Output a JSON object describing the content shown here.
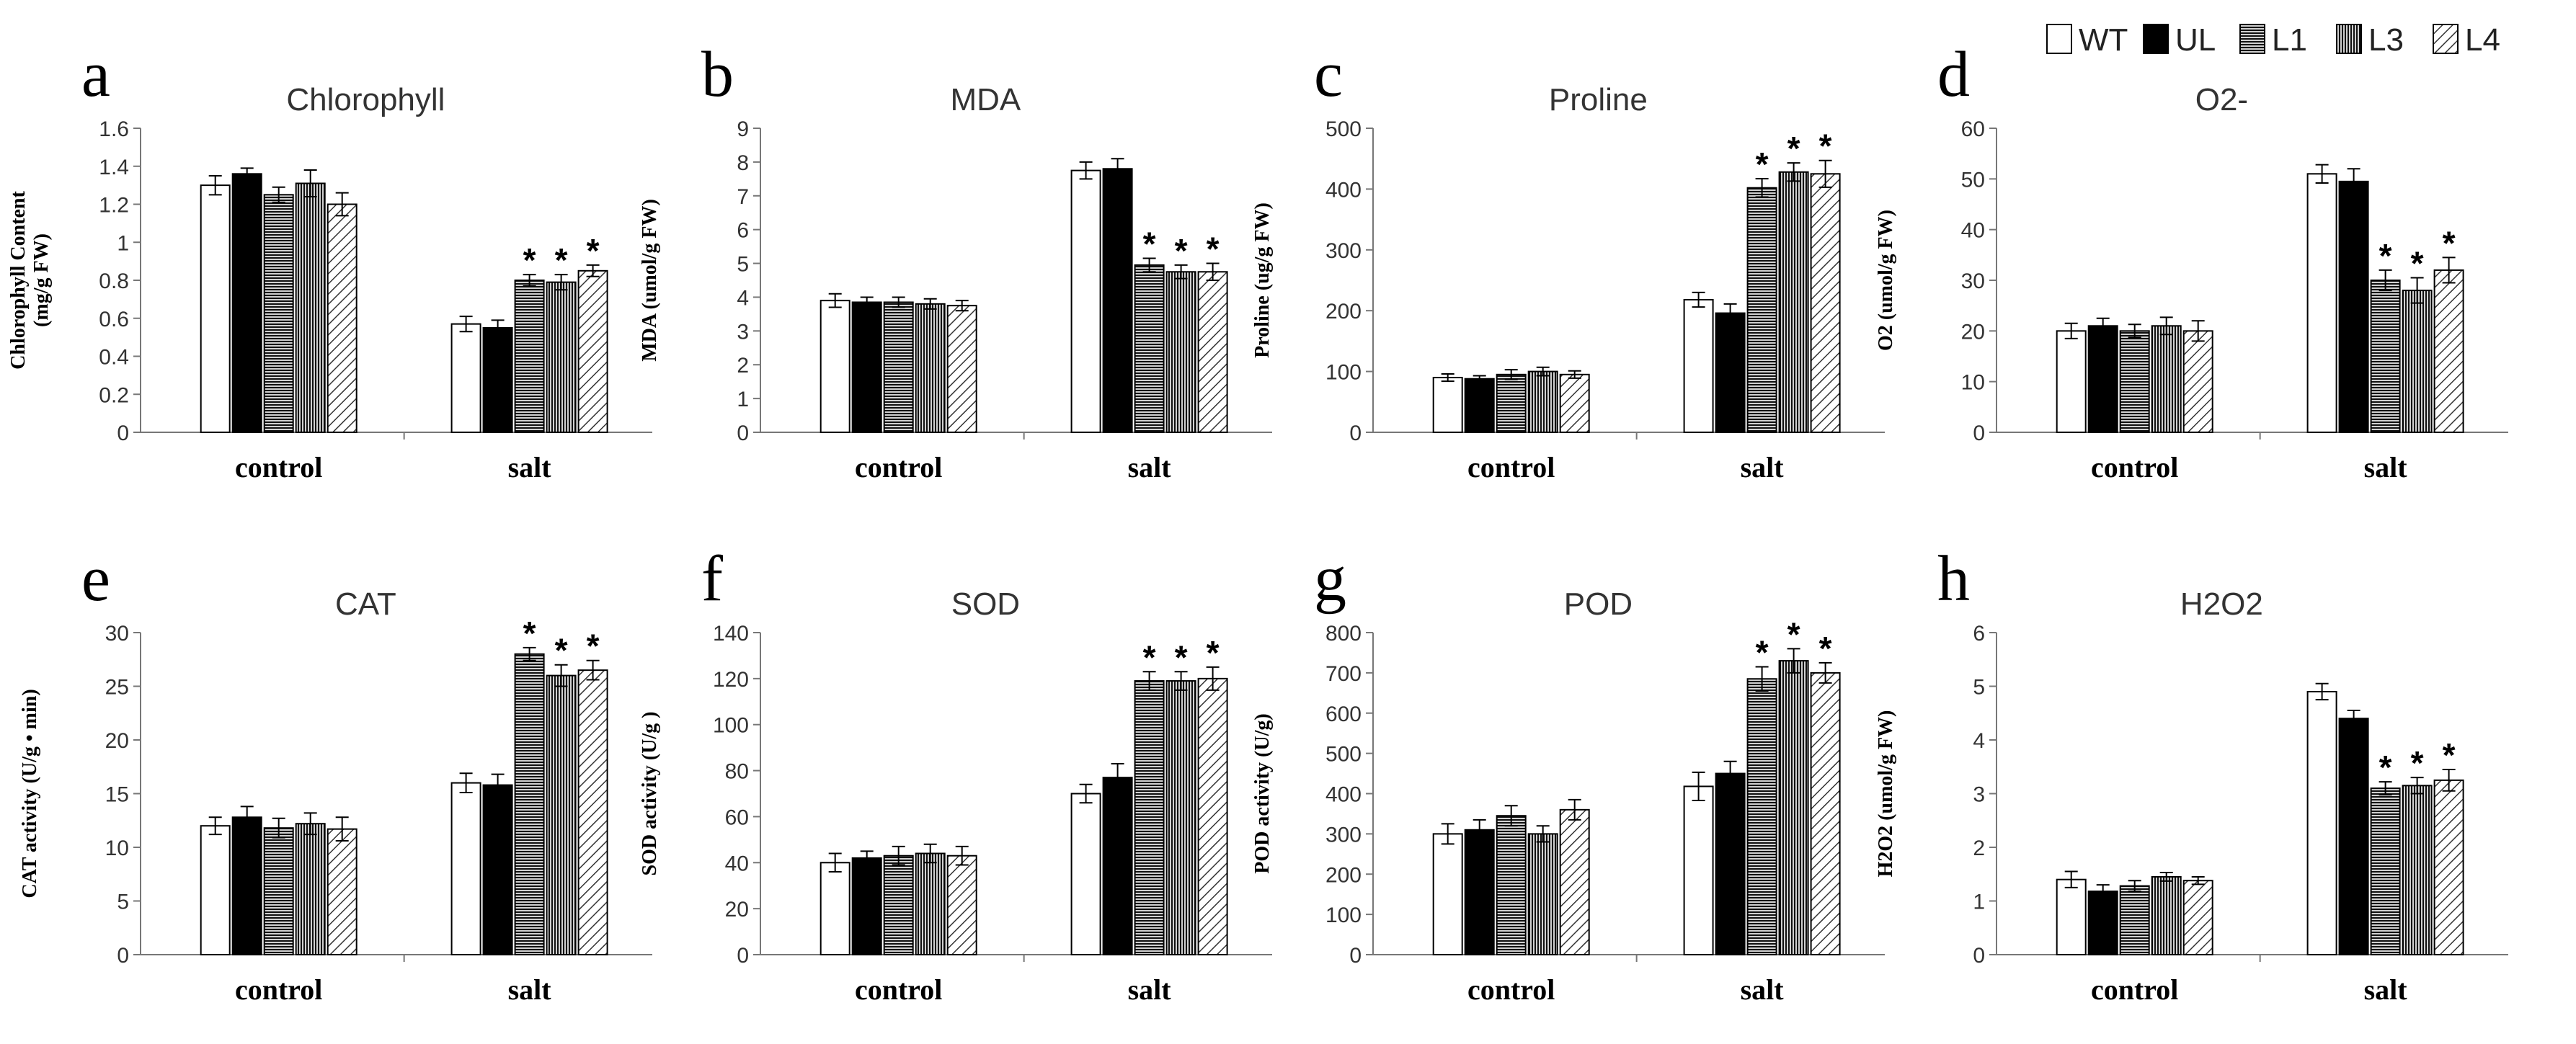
{
  "legend": {
    "position": "top-right",
    "items": [
      {
        "name": "WT",
        "pattern": "white"
      },
      {
        "name": "UL",
        "pattern": "black"
      },
      {
        "name": "L1",
        "pattern": "hlines"
      },
      {
        "name": "L3",
        "pattern": "vlines"
      },
      {
        "name": "L4",
        "pattern": "diag"
      }
    ]
  },
  "colors": {
    "axis": "#777777",
    "bar_stroke": "#000000",
    "text": "#222222"
  },
  "chart_data": [
    {
      "panel": "a",
      "type": "bar",
      "title": "Chlorophyll",
      "ylabel_lines": [
        "Chlorophyll Content",
        "(mg/g FW)"
      ],
      "categories": [
        "control",
        "salt"
      ],
      "ylim": [
        0,
        1.6
      ],
      "yticks": [
        "0",
        "0.2",
        "0.4",
        "0.6",
        "0.8",
        "1",
        "1.2",
        "1.4",
        "1.6"
      ],
      "series": [
        {
          "name": "WT",
          "values": [
            1.3,
            0.57
          ],
          "errors": [
            0.05,
            0.04
          ]
        },
        {
          "name": "UL",
          "values": [
            1.36,
            0.55
          ],
          "errors": [
            0.03,
            0.04
          ]
        },
        {
          "name": "L1",
          "values": [
            1.25,
            0.8
          ],
          "errors": [
            0.04,
            0.03
          ]
        },
        {
          "name": "L3",
          "values": [
            1.31,
            0.79
          ],
          "errors": [
            0.07,
            0.04
          ]
        },
        {
          "name": "L4",
          "values": [
            1.2,
            0.85
          ],
          "errors": [
            0.06,
            0.03
          ]
        }
      ],
      "significance": [
        [
          "",
          ""
        ],
        [
          "",
          ""
        ],
        [
          "",
          "*"
        ],
        [
          "",
          "*"
        ],
        [
          "",
          "*"
        ]
      ]
    },
    {
      "panel": "b",
      "type": "bar",
      "title": "MDA",
      "ylabel_lines": [
        "MDA (umol/g FW)"
      ],
      "categories": [
        "control",
        "salt"
      ],
      "ylim": [
        0,
        9
      ],
      "yticks": [
        "0",
        "1",
        "2",
        "3",
        "4",
        "5",
        "6",
        "7",
        "8",
        "9"
      ],
      "series": [
        {
          "name": "WT",
          "values": [
            3.9,
            7.75
          ],
          "errors": [
            0.2,
            0.25
          ]
        },
        {
          "name": "UL",
          "values": [
            3.85,
            7.8
          ],
          "errors": [
            0.15,
            0.3
          ]
        },
        {
          "name": "L1",
          "values": [
            3.85,
            4.95
          ],
          "errors": [
            0.15,
            0.2
          ]
        },
        {
          "name": "L3",
          "values": [
            3.8,
            4.75
          ],
          "errors": [
            0.15,
            0.2
          ]
        },
        {
          "name": "L4",
          "values": [
            3.75,
            4.75
          ],
          "errors": [
            0.15,
            0.25
          ]
        }
      ],
      "significance": [
        [
          "",
          ""
        ],
        [
          "",
          ""
        ],
        [
          "",
          "*"
        ],
        [
          "",
          "*"
        ],
        [
          "",
          "*"
        ]
      ]
    },
    {
      "panel": "c",
      "type": "bar",
      "title": "Proline",
      "ylabel_lines": [
        "Proline (ug/g FW)"
      ],
      "categories": [
        "control",
        "salt"
      ],
      "ylim": [
        0,
        500
      ],
      "yticks": [
        "0",
        "100",
        "200",
        "300",
        "400",
        "500"
      ],
      "series": [
        {
          "name": "WT",
          "values": [
            90,
            218
          ],
          "errors": [
            6,
            12
          ]
        },
        {
          "name": "UL",
          "values": [
            88,
            196
          ],
          "errors": [
            5,
            15
          ]
        },
        {
          "name": "L1",
          "values": [
            95,
            402
          ],
          "errors": [
            8,
            15
          ]
        },
        {
          "name": "L3",
          "values": [
            100,
            428
          ],
          "errors": [
            7,
            15
          ]
        },
        {
          "name": "L4",
          "values": [
            95,
            425
          ],
          "errors": [
            6,
            22
          ]
        }
      ],
      "significance": [
        [
          "",
          ""
        ],
        [
          "",
          ""
        ],
        [
          "",
          "*"
        ],
        [
          "",
          "*"
        ],
        [
          "",
          "*"
        ]
      ]
    },
    {
      "panel": "d",
      "type": "bar",
      "title": "O2-",
      "ylabel_lines": [
        "O2 (umol/g FW)"
      ],
      "categories": [
        "control",
        "salt"
      ],
      "ylim": [
        0,
        60
      ],
      "yticks": [
        "0",
        "10",
        "20",
        "30",
        "40",
        "50",
        "60"
      ],
      "series": [
        {
          "name": "WT",
          "values": [
            20,
            51
          ],
          "errors": [
            1.5,
            1.8
          ]
        },
        {
          "name": "UL",
          "values": [
            21,
            49.5
          ],
          "errors": [
            1.5,
            2.5
          ]
        },
        {
          "name": "L1",
          "values": [
            20,
            30
          ],
          "errors": [
            1.3,
            2
          ]
        },
        {
          "name": "L3",
          "values": [
            21,
            28
          ],
          "errors": [
            1.7,
            2.5
          ]
        },
        {
          "name": "L4",
          "values": [
            20,
            32
          ],
          "errors": [
            2,
            2.5
          ]
        }
      ],
      "significance": [
        [
          "",
          ""
        ],
        [
          "",
          ""
        ],
        [
          "",
          "*"
        ],
        [
          "",
          "*"
        ],
        [
          "",
          "*"
        ]
      ]
    },
    {
      "panel": "e",
      "type": "bar",
      "title": "CAT",
      "ylabel_lines": [
        "CAT activity (U/g • min)"
      ],
      "categories": [
        "control",
        "salt"
      ],
      "ylim": [
        0,
        30
      ],
      "yticks": [
        "0",
        "5",
        "10",
        "15",
        "20",
        "25",
        "30"
      ],
      "series": [
        {
          "name": "WT",
          "values": [
            12,
            16
          ],
          "errors": [
            0.8,
            0.9
          ]
        },
        {
          "name": "UL",
          "values": [
            12.8,
            15.8
          ],
          "errors": [
            1,
            1
          ]
        },
        {
          "name": "L1",
          "values": [
            11.8,
            28
          ],
          "errors": [
            0.9,
            0.6
          ]
        },
        {
          "name": "L3",
          "values": [
            12.2,
            26
          ],
          "errors": [
            1,
            1
          ]
        },
        {
          "name": "L4",
          "values": [
            11.7,
            26.5
          ],
          "errors": [
            1.1,
            0.9
          ]
        }
      ],
      "significance": [
        [
          "",
          ""
        ],
        [
          "",
          ""
        ],
        [
          "",
          "*"
        ],
        [
          "",
          "*"
        ],
        [
          "",
          "*"
        ]
      ]
    },
    {
      "panel": "f",
      "type": "bar",
      "title": "SOD",
      "ylabel_lines": [
        "SOD activity (U/g )"
      ],
      "categories": [
        "control",
        "salt"
      ],
      "ylim": [
        0,
        140
      ],
      "yticks": [
        "0",
        "20",
        "40",
        "60",
        "80",
        "100",
        "120",
        "140"
      ],
      "series": [
        {
          "name": "WT",
          "values": [
            40,
            70
          ],
          "errors": [
            4,
            4
          ]
        },
        {
          "name": "UL",
          "values": [
            42,
            77
          ],
          "errors": [
            3,
            6
          ]
        },
        {
          "name": "L1",
          "values": [
            43,
            119
          ],
          "errors": [
            4,
            4
          ]
        },
        {
          "name": "L3",
          "values": [
            44,
            119
          ],
          "errors": [
            4,
            4
          ]
        },
        {
          "name": "L4",
          "values": [
            43,
            120
          ],
          "errors": [
            4,
            5
          ]
        }
      ],
      "significance": [
        [
          "",
          ""
        ],
        [
          "",
          ""
        ],
        [
          "",
          "*"
        ],
        [
          "",
          "*"
        ],
        [
          "",
          "*"
        ]
      ]
    },
    {
      "panel": "g",
      "type": "bar",
      "title": "POD",
      "ylabel_lines": [
        "POD activity (U/g)"
      ],
      "categories": [
        "control",
        "salt"
      ],
      "ylim": [
        0,
        800
      ],
      "yticks": [
        "0",
        "100",
        "200",
        "300",
        "400",
        "500",
        "600",
        "700",
        "800"
      ],
      "series": [
        {
          "name": "WT",
          "values": [
            300,
            418
          ],
          "errors": [
            25,
            35
          ]
        },
        {
          "name": "UL",
          "values": [
            310,
            450
          ],
          "errors": [
            25,
            30
          ]
        },
        {
          "name": "L1",
          "values": [
            345,
            685
          ],
          "errors": [
            25,
            30
          ]
        },
        {
          "name": "L3",
          "values": [
            300,
            730
          ],
          "errors": [
            20,
            30
          ]
        },
        {
          "name": "L4",
          "values": [
            360,
            700
          ],
          "errors": [
            25,
            25
          ]
        }
      ],
      "significance": [
        [
          "",
          ""
        ],
        [
          "",
          ""
        ],
        [
          "",
          "*"
        ],
        [
          "",
          "*"
        ],
        [
          "",
          "*"
        ]
      ]
    },
    {
      "panel": "h",
      "type": "bar",
      "title": "H2O2",
      "ylabel_lines": [
        "H2O2 (umol/g FW)"
      ],
      "categories": [
        "control",
        "salt"
      ],
      "ylim": [
        0,
        6
      ],
      "yticks": [
        "0",
        "1",
        "2",
        "3",
        "4",
        "5",
        "6"
      ],
      "series": [
        {
          "name": "WT",
          "values": [
            1.4,
            4.9
          ],
          "errors": [
            0.15,
            0.15
          ]
        },
        {
          "name": "UL",
          "values": [
            1.18,
            4.4
          ],
          "errors": [
            0.12,
            0.15
          ]
        },
        {
          "name": "L1",
          "values": [
            1.28,
            3.1
          ],
          "errors": [
            0.1,
            0.12
          ]
        },
        {
          "name": "L3",
          "values": [
            1.45,
            3.15
          ],
          "errors": [
            0.08,
            0.15
          ]
        },
        {
          "name": "L4",
          "values": [
            1.38,
            3.25
          ],
          "errors": [
            0.07,
            0.2
          ]
        }
      ],
      "significance": [
        [
          "",
          ""
        ],
        [
          "",
          ""
        ],
        [
          "",
          "*"
        ],
        [
          "",
          "*"
        ],
        [
          "",
          "*"
        ]
      ]
    }
  ]
}
